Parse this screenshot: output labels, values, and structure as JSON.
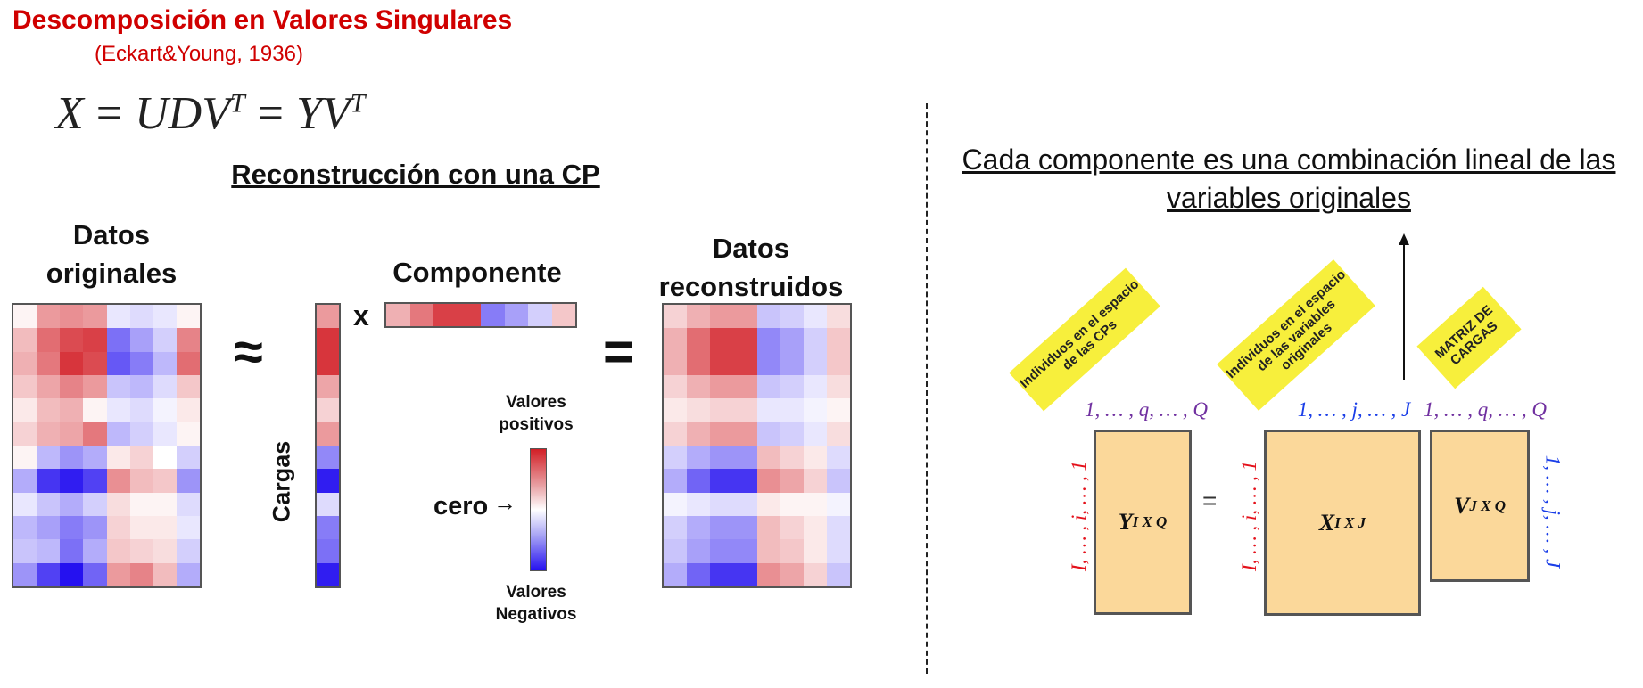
{
  "title": "Descomposición en Valores Singulares",
  "subtitle": "(Eckart&Young, 1936)",
  "formula": {
    "lhs": "X",
    "eq1": "=",
    "mid": "UDV",
    "eq2": "=",
    "rhs": "YV",
    "sup": "T"
  },
  "left_section_title": "Reconstrucción con una CP",
  "original_data_title": "Datos originales",
  "component_title": "Componente",
  "reconstructed_title": "Datos reconstruidos",
  "cargas_label": "Cargas",
  "approx_symbol": "≈",
  "times_symbol": "x",
  "equals_symbol": "=",
  "legend": {
    "positive_label": "Valores positivos",
    "negative_label": "Valores Negativos",
    "zero_label": "cero",
    "arrow": "→"
  },
  "right_title": "Cada componente es una combinación lineal de las variables originales",
  "notes": {
    "y_note": "Individuos en el espacio de las CPs",
    "x_note": "Individuos en el espacio de las variables originales",
    "v_note": "MATRIZ DE CARGAS"
  },
  "matrices": {
    "y_label": "Y",
    "y_sub": "I X Q",
    "x_label": "X",
    "x_sub": "I X J",
    "v_label": "V",
    "v_sub": "J X Q",
    "equals": "="
  },
  "indices": {
    "y_top": "1, … , q, … , Q",
    "x_top": "1, … , j, … , J",
    "v_top": "1, … , q, … , Q",
    "y_left": "I, … , i, … , 1",
    "x_left": "I, … , i, … , 1",
    "v_right": "1, … , j, … , J"
  },
  "colors": {
    "title_red": "#d00000",
    "note_yellow": "#f7ef3c",
    "box_fill": "#fbd89a",
    "index_purple": "#7030a0",
    "index_blue": "#1a3ee8",
    "index_red": "#e4101a"
  },
  "heatmaps": {
    "original": [
      [
        0.05,
        0.45,
        0.5,
        0.45,
        -0.1,
        -0.15,
        -0.1,
        0.05
      ],
      [
        0.3,
        0.65,
        0.8,
        0.85,
        -0.6,
        -0.4,
        -0.2,
        0.55
      ],
      [
        0.35,
        0.6,
        0.9,
        0.8,
        -0.7,
        -0.55,
        -0.3,
        0.65
      ],
      [
        0.25,
        0.4,
        0.55,
        0.45,
        -0.25,
        -0.3,
        -0.15,
        0.25
      ],
      [
        0.1,
        0.3,
        0.35,
        0.05,
        -0.1,
        -0.15,
        -0.05,
        0.1
      ],
      [
        0.2,
        0.35,
        0.4,
        0.6,
        -0.3,
        -0.2,
        -0.1,
        0.05
      ],
      [
        0.05,
        -0.3,
        -0.45,
        -0.35,
        0.1,
        0.2,
        0.0,
        -0.2
      ],
      [
        -0.35,
        -0.85,
        -0.95,
        -0.8,
        0.5,
        0.3,
        0.25,
        -0.45
      ],
      [
        -0.1,
        -0.25,
        -0.35,
        -0.2,
        0.15,
        0.05,
        0.05,
        -0.15
      ],
      [
        -0.3,
        -0.4,
        -0.55,
        -0.45,
        0.2,
        0.1,
        0.1,
        -0.1
      ],
      [
        -0.25,
        -0.3,
        -0.6,
        -0.35,
        0.25,
        0.2,
        0.15,
        -0.2
      ],
      [
        -0.45,
        -0.8,
        -1.0,
        -0.65,
        0.45,
        0.55,
        0.3,
        -0.35
      ]
    ],
    "loadings": [
      0.45,
      0.9,
      0.9,
      0.4,
      0.2,
      0.45,
      -0.5,
      -0.95,
      -0.15,
      -0.55,
      -0.6,
      -0.95
    ],
    "component": [
      0.35,
      0.6,
      0.85,
      0.85,
      -0.55,
      -0.4,
      -0.2,
      0.25
    ],
    "reconstructed": [
      [
        0.2,
        0.35,
        0.45,
        0.45,
        -0.25,
        -0.2,
        -0.1,
        0.15
      ],
      [
        0.35,
        0.65,
        0.85,
        0.85,
        -0.5,
        -0.4,
        -0.2,
        0.25
      ],
      [
        0.35,
        0.65,
        0.85,
        0.85,
        -0.5,
        -0.4,
        -0.2,
        0.25
      ],
      [
        0.2,
        0.35,
        0.45,
        0.45,
        -0.25,
        -0.2,
        -0.1,
        0.15
      ],
      [
        0.1,
        0.15,
        0.2,
        0.2,
        -0.1,
        -0.1,
        -0.05,
        0.05
      ],
      [
        0.2,
        0.35,
        0.45,
        0.45,
        -0.25,
        -0.2,
        -0.1,
        0.15
      ],
      [
        -0.2,
        -0.35,
        -0.45,
        -0.45,
        0.3,
        0.2,
        0.1,
        -0.15
      ],
      [
        -0.35,
        -0.65,
        -0.85,
        -0.85,
        0.5,
        0.4,
        0.2,
        -0.25
      ],
      [
        -0.05,
        -0.1,
        -0.15,
        -0.15,
        0.1,
        0.05,
        0.05,
        -0.05
      ],
      [
        -0.2,
        -0.35,
        -0.45,
        -0.45,
        0.3,
        0.2,
        0.1,
        -0.15
      ],
      [
        -0.25,
        -0.4,
        -0.5,
        -0.5,
        0.3,
        0.25,
        0.1,
        -0.15
      ],
      [
        -0.35,
        -0.65,
        -0.85,
        -0.85,
        0.5,
        0.4,
        0.2,
        -0.25
      ]
    ]
  }
}
